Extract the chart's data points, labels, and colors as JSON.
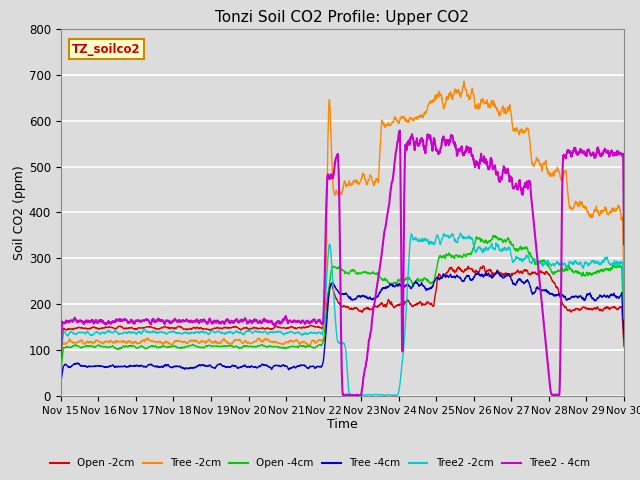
{
  "title": "Tonzi Soil CO2 Profile: Upper CO2",
  "xlabel": "Time",
  "ylabel": "Soil CO2 (ppm)",
  "ylim": [
    0,
    800
  ],
  "xlim": [
    0,
    15
  ],
  "background_color": "#dcdcdc",
  "watermark_text": "TZ_soilco2",
  "watermark_bg": "#ffffcc",
  "watermark_border": "#cc8800",
  "colors": {
    "open2": "#dd0000",
    "tree2": "#ff8800",
    "open4": "#00cc00",
    "tree4": "#0000cc",
    "tree2_2": "#00cccc",
    "tree2_4": "#cc00cc"
  },
  "xtick_labels": [
    "Nov 15",
    "Nov 16",
    "Nov 17",
    "Nov 18",
    "Nov 19",
    "Nov 20",
    "Nov 21",
    "Nov 22",
    "Nov 23",
    "Nov 24",
    "Nov 25",
    "Nov 26",
    "Nov 27",
    "Nov 28",
    "Nov 29",
    "Nov 30"
  ],
  "ytick_values": [
    0,
    100,
    200,
    300,
    400,
    500,
    600,
    700,
    800
  ],
  "legend_labels": [
    "Open -2cm",
    "Tree -2cm",
    "Open -4cm",
    "Tree -4cm",
    "Tree2 -2cm",
    "Tree2 - 4cm"
  ]
}
